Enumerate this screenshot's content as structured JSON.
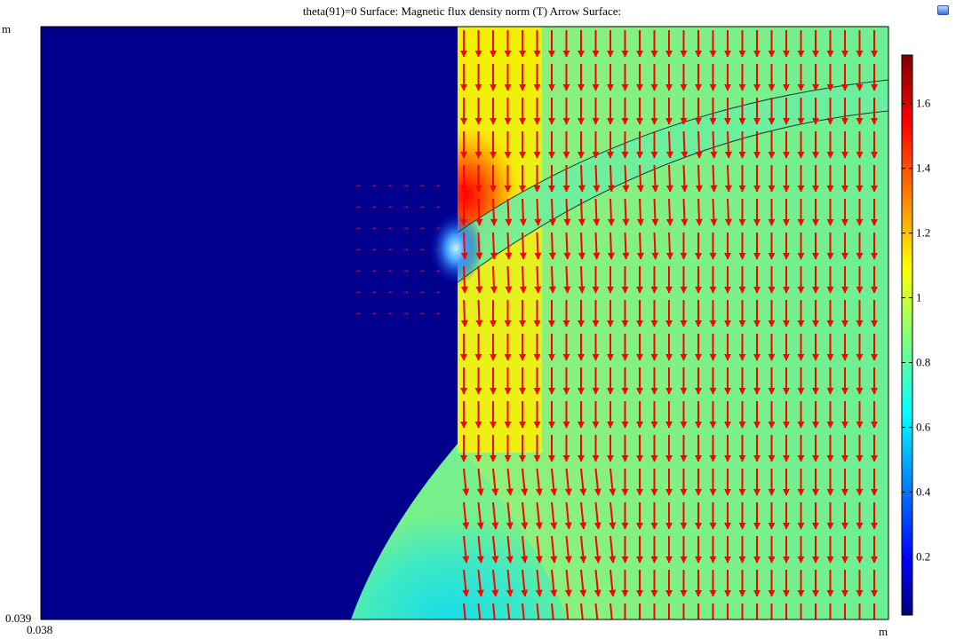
{
  "header": {
    "title": "theta(91)=0   Surface: Magnetic flux density norm (T)  Arrow Surface:"
  },
  "axes": {
    "y_unit": "m",
    "y_min_label": "0.039",
    "x_min_label": "0.038",
    "x_unit": "m"
  },
  "chart_data": {
    "type": "heatmap",
    "title": "theta(91)=0   Surface: Magnetic flux density norm (T)  Arrow Surface:",
    "quantity": "Magnetic flux density norm (T)",
    "colorbar": {
      "ticks": [
        0.2,
        0.4,
        0.6,
        0.8,
        1,
        1.2,
        1.4,
        1.6
      ],
      "range": [
        0.02,
        1.75
      ],
      "colormap": [
        "#00007f",
        "#0000ff",
        "#00ffff",
        "#ffff00",
        "#ff0000",
        "#7f0000"
      ]
    },
    "x_tick_labels": [
      "0.038"
    ],
    "y_tick_labels": [
      "0.039"
    ],
    "regions": [
      {
        "name": "left block",
        "value": 0.02
      },
      {
        "name": "upper conductor near edge",
        "value": 1.05
      },
      {
        "name": "right field",
        "value": 0.87
      },
      {
        "name": "hotspot at corner",
        "value": 1.75
      },
      {
        "name": "lower curved region",
        "value": 0.7
      }
    ],
    "arrows": {
      "color": "#ff0000",
      "direction": "downward"
    },
    "grid": false
  }
}
